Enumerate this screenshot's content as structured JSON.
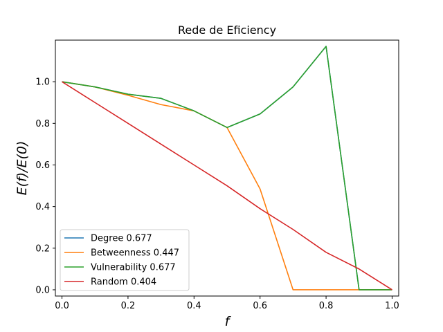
{
  "chart_data": {
    "type": "line",
    "title": "Rede de Eficiency",
    "xlabel": "f",
    "ylabel": "E(f)/E(0)",
    "xlim": [
      -0.02,
      1.02
    ],
    "ylim": [
      -0.03,
      1.2
    ],
    "xticks": [
      0.0,
      0.2,
      0.4,
      0.6,
      0.8,
      1.0
    ],
    "xtick_labels": [
      "0.0",
      "0.2",
      "0.4",
      "0.6",
      "0.8",
      "1.0"
    ],
    "yticks": [
      0.0,
      0.2,
      0.4,
      0.6,
      0.8,
      1.0
    ],
    "ytick_labels": [
      "0.0",
      "0.2",
      "0.4",
      "0.6",
      "0.8",
      "1.0"
    ],
    "grid": false,
    "legend_position": "lower-left",
    "x": [
      0.0,
      0.1,
      0.2,
      0.3,
      0.4,
      0.5,
      0.6,
      0.7,
      0.8,
      0.9,
      1.0
    ],
    "series": [
      {
        "name": "Degree 0.677",
        "color": "#1f77b4",
        "values": [
          1.0,
          0.975,
          0.94,
          0.92,
          0.86,
          0.78,
          0.845,
          0.975,
          1.17,
          0.0,
          0.0
        ]
      },
      {
        "name": "Betweenness 0.447",
        "color": "#ff7f0e",
        "values": [
          1.0,
          0.975,
          0.935,
          0.89,
          0.86,
          0.78,
          0.485,
          0.0,
          0.0,
          0.0,
          0.0
        ]
      },
      {
        "name": "Vulnerability 0.677",
        "color": "#2ca02c",
        "values": [
          1.0,
          0.975,
          0.94,
          0.92,
          0.86,
          0.78,
          0.845,
          0.975,
          1.17,
          0.0,
          0.0
        ]
      },
      {
        "name": "Random 0.404",
        "color": "#d62728",
        "values": [
          1.0,
          0.9,
          0.8,
          0.7,
          0.6,
          0.5,
          0.39,
          0.29,
          0.18,
          0.1,
          0.0
        ]
      }
    ]
  }
}
